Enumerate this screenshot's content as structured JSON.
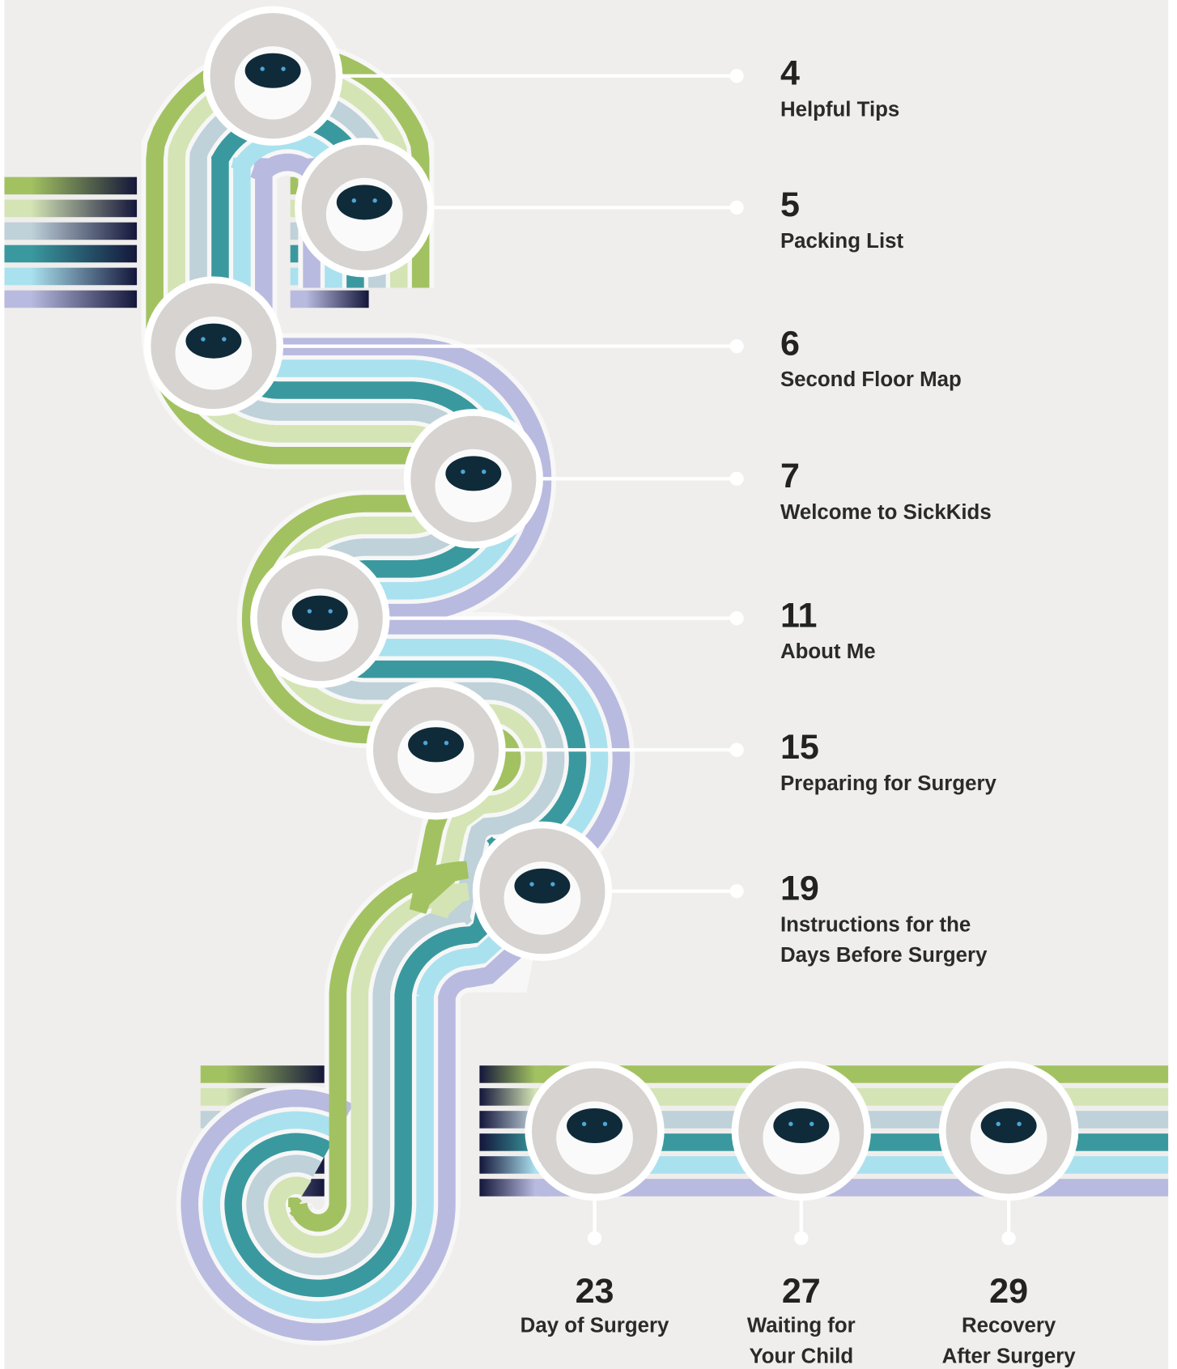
{
  "entries": [
    {
      "page": 4,
      "title": [
        "Helpful Tips"
      ]
    },
    {
      "page": 5,
      "title": [
        "Packing List"
      ]
    },
    {
      "page": 6,
      "title": [
        "Second Floor Map"
      ]
    },
    {
      "page": 7,
      "title": [
        "Welcome to SickKids"
      ]
    },
    {
      "page": 11,
      "title": [
        "About Me"
      ]
    },
    {
      "page": 15,
      "title": [
        "Preparing for Surgery"
      ]
    },
    {
      "page": 19,
      "title": [
        "Instructions for the",
        "Days Before Surgery"
      ]
    },
    {
      "page": 23,
      "title": [
        "Day of Surgery"
      ]
    },
    {
      "page": 27,
      "title": [
        "Waiting for",
        "Your Child"
      ]
    },
    {
      "page": 29,
      "title": [
        "Recovery",
        "After Surgery"
      ]
    }
  ]
}
